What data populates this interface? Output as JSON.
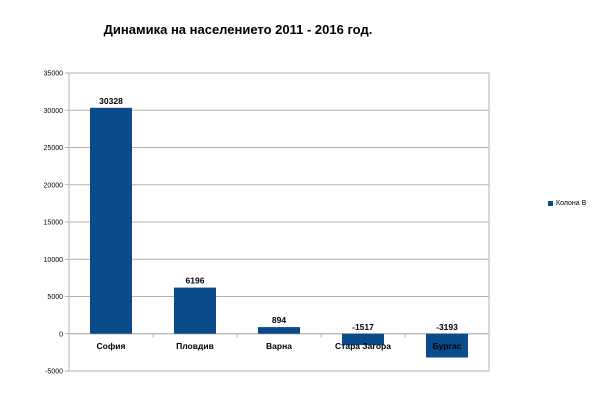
{
  "chart_data": {
    "type": "bar",
    "title": "Динамика на населението 2011 - 2016 год.",
    "categories": [
      "София",
      "Пловдив",
      "Варна",
      "Стара Загора",
      "Бургас"
    ],
    "series": [
      {
        "name": "Колона B",
        "values": [
          30328,
          6196,
          894,
          -1517,
          -3193
        ]
      }
    ],
    "data_labels": [
      "30328",
      "6196",
      "894",
      "-1517",
      "-3193"
    ],
    "ylim": [
      -5000,
      35000
    ],
    "yticks": [
      {
        "value": 35000,
        "label": "35000"
      },
      {
        "value": 30000,
        "label": "30000"
      },
      {
        "value": 25000,
        "label": "25000"
      },
      {
        "value": 20000,
        "label": "20000"
      },
      {
        "value": 15000,
        "label": "15000"
      },
      {
        "value": 10000,
        "label": "10000"
      },
      {
        "value": 5000,
        "label": "5000"
      },
      {
        "value": 0,
        "label": "0"
      },
      {
        "value": -5000,
        "label": "-5000"
      }
    ],
    "grid": true,
    "legend_position": "right",
    "bar_color": "#0a4b8c"
  }
}
